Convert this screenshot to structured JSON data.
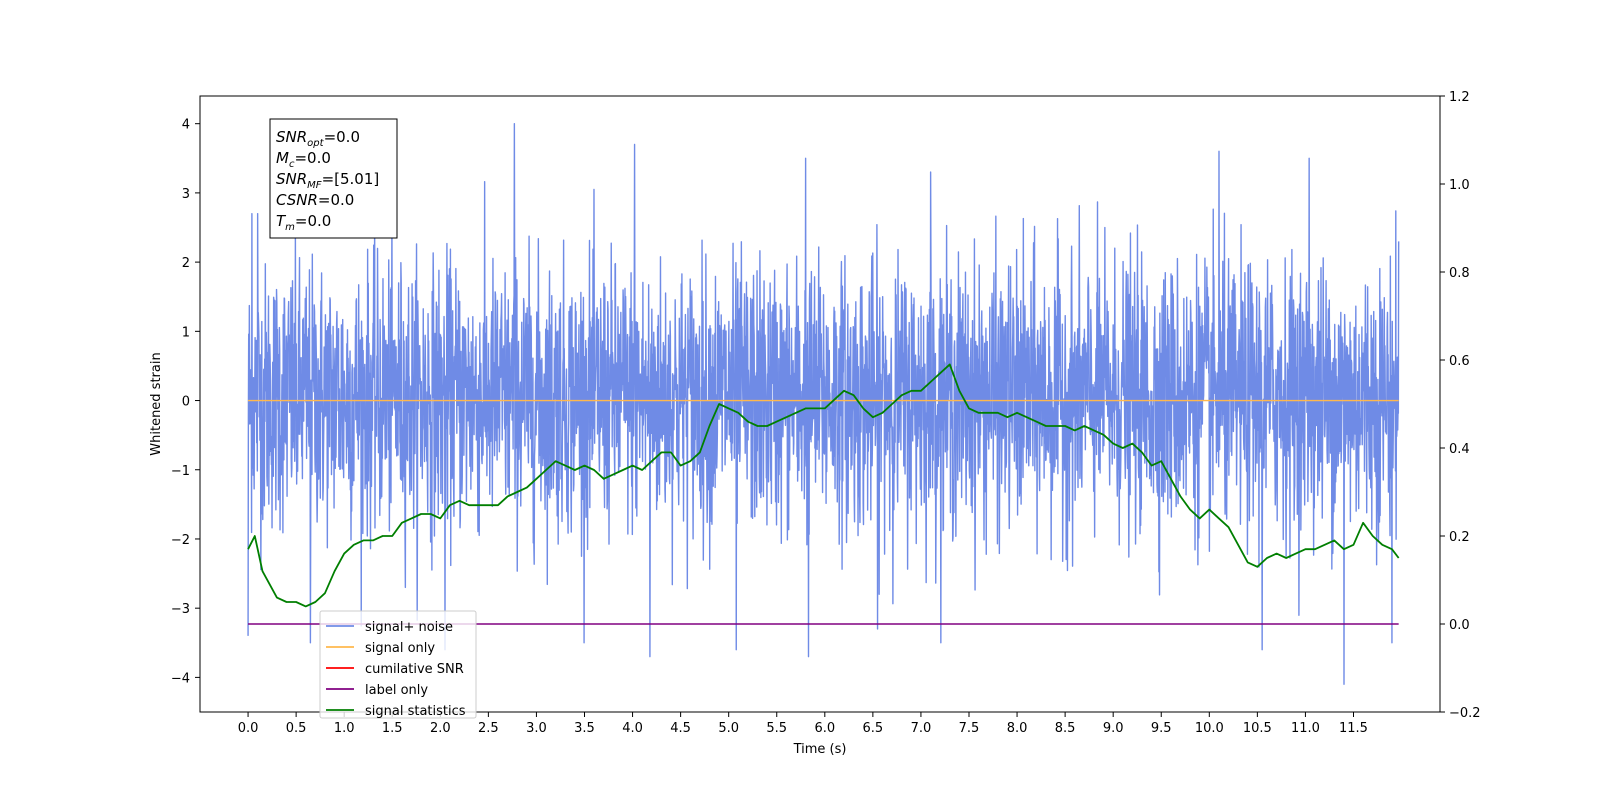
{
  "chart_data": {
    "type": "line",
    "title": "",
    "xlabel": "Time (s)",
    "ylabel": "Whitened strain",
    "y2label": "",
    "xlim": [
      -0.5,
      12.4
    ],
    "ylim": [
      -4.5,
      4.4
    ],
    "y2lim": [
      -0.2,
      1.2
    ],
    "grid": false,
    "legend_position": "lower-left",
    "x_ticks": [
      "0.0",
      "0.5",
      "1.0",
      "1.5",
      "2.0",
      "2.5",
      "3.0",
      "3.5",
      "4.0",
      "4.5",
      "5.0",
      "5.5",
      "6.0",
      "6.5",
      "7.0",
      "7.5",
      "8.0",
      "8.5",
      "9.0",
      "9.5",
      "10.0",
      "10.5",
      "11.0",
      "11.5"
    ],
    "y_ticks": [
      "-4",
      "-3",
      "-2",
      "-1",
      "0",
      "1",
      "2",
      "3",
      "4"
    ],
    "y2_ticks": [
      "−0.2",
      "0.0",
      "0.2",
      "0.4",
      "0.6",
      "0.8",
      "1.0",
      "1.2"
    ],
    "stats_box": [
      {
        "symbol": "SNR",
        "sub": "opt",
        "value": "=0.0"
      },
      {
        "symbol": "M",
        "sub": "c",
        "value": "=0.0"
      },
      {
        "symbol": "SNR",
        "sub": "MF",
        "value": "=[5.01]"
      },
      {
        "symbol": "CSNR",
        "sub": "",
        "value": "=0.0"
      },
      {
        "symbol": "T",
        "sub": "m",
        "value": "=0.0"
      }
    ],
    "series": [
      {
        "name": "signal+ noise",
        "axis": "left",
        "color": "#6f8be6",
        "x_range": [
          0.0,
          11.97
        ],
        "envelope": {
          "max": 4.0,
          "min": -4.1,
          "typical": [
            -2.3,
            2.4
          ]
        },
        "spikes": [
          [
            0.0,
            -3.4
          ],
          [
            0.04,
            2.7
          ],
          [
            0.1,
            2.7
          ],
          [
            0.65,
            -3.5
          ],
          [
            2.05,
            -3.6
          ],
          [
            2.77,
            4.0
          ],
          [
            4.02,
            3.7
          ],
          [
            4.18,
            -3.7
          ],
          [
            5.08,
            -3.6
          ],
          [
            5.8,
            3.5
          ],
          [
            5.83,
            -3.7
          ],
          [
            6.55,
            -3.3
          ],
          [
            7.1,
            3.3
          ],
          [
            10.1,
            3.6
          ],
          [
            10.55,
            -3.6
          ],
          [
            11.04,
            3.5
          ],
          [
            11.4,
            -4.1
          ],
          [
            11.9,
            -3.5
          ],
          [
            11.97,
            2.3
          ]
        ]
      },
      {
        "name": "signal only",
        "axis": "left",
        "color": "#ffb84d",
        "x": [
          0.0,
          11.97
        ],
        "y": [
          0.0,
          0.0
        ]
      },
      {
        "name": "cumilative SNR",
        "axis": "right",
        "color": "#ff0000",
        "x": [],
        "y": []
      },
      {
        "name": "label only",
        "axis": "right",
        "color": "#800080",
        "x": [
          0.0,
          11.97
        ],
        "y": [
          0.0,
          0.0
        ]
      },
      {
        "name": "signal statistics",
        "axis": "right",
        "color": "#007f00",
        "x": [
          0.0,
          0.07,
          0.15,
          0.3,
          0.4,
          0.5,
          0.6,
          0.7,
          0.8,
          0.9,
          1.0,
          1.1,
          1.2,
          1.3,
          1.4,
          1.5,
          1.6,
          1.7,
          1.8,
          1.9,
          2.0,
          2.1,
          2.2,
          2.3,
          2.4,
          2.5,
          2.6,
          2.7,
          2.8,
          2.9,
          3.0,
          3.1,
          3.2,
          3.3,
          3.4,
          3.5,
          3.6,
          3.7,
          3.8,
          3.9,
          4.0,
          4.1,
          4.2,
          4.3,
          4.4,
          4.5,
          4.6,
          4.7,
          4.8,
          4.9,
          5.0,
          5.1,
          5.2,
          5.3,
          5.4,
          5.5,
          5.6,
          5.7,
          5.8,
          5.9,
          6.0,
          6.1,
          6.2,
          6.3,
          6.4,
          6.5,
          6.6,
          6.7,
          6.8,
          6.9,
          7.0,
          7.1,
          7.2,
          7.3,
          7.4,
          7.5,
          7.6,
          7.7,
          7.8,
          7.9,
          8.0,
          8.1,
          8.2,
          8.3,
          8.4,
          8.5,
          8.6,
          8.7,
          8.8,
          8.9,
          9.0,
          9.1,
          9.2,
          9.3,
          9.4,
          9.5,
          9.6,
          9.7,
          9.8,
          9.9,
          10.0,
          10.1,
          10.2,
          10.3,
          10.4,
          10.5,
          10.6,
          10.7,
          10.8,
          10.9,
          11.0,
          11.1,
          11.2,
          11.3,
          11.4,
          11.5,
          11.6,
          11.7,
          11.8,
          11.9,
          11.97
        ],
        "y": [
          0.17,
          0.2,
          0.12,
          0.06,
          0.05,
          0.05,
          0.04,
          0.05,
          0.07,
          0.12,
          0.16,
          0.18,
          0.19,
          0.19,
          0.2,
          0.2,
          0.23,
          0.24,
          0.25,
          0.25,
          0.24,
          0.27,
          0.28,
          0.27,
          0.27,
          0.27,
          0.27,
          0.29,
          0.3,
          0.31,
          0.33,
          0.35,
          0.37,
          0.36,
          0.35,
          0.36,
          0.35,
          0.33,
          0.34,
          0.35,
          0.36,
          0.35,
          0.37,
          0.39,
          0.39,
          0.36,
          0.37,
          0.39,
          0.45,
          0.5,
          0.49,
          0.48,
          0.46,
          0.45,
          0.45,
          0.46,
          0.47,
          0.48,
          0.49,
          0.49,
          0.49,
          0.51,
          0.53,
          0.52,
          0.49,
          0.47,
          0.48,
          0.5,
          0.52,
          0.53,
          0.53,
          0.55,
          0.57,
          0.59,
          0.53,
          0.49,
          0.48,
          0.48,
          0.48,
          0.47,
          0.48,
          0.47,
          0.46,
          0.45,
          0.45,
          0.45,
          0.44,
          0.45,
          0.44,
          0.43,
          0.41,
          0.4,
          0.41,
          0.39,
          0.36,
          0.37,
          0.33,
          0.29,
          0.26,
          0.24,
          0.26,
          0.24,
          0.22,
          0.18,
          0.14,
          0.13,
          0.15,
          0.16,
          0.15,
          0.16,
          0.17,
          0.17,
          0.18,
          0.19,
          0.17,
          0.18,
          0.23,
          0.2,
          0.18,
          0.17,
          0.15
        ]
      }
    ]
  }
}
